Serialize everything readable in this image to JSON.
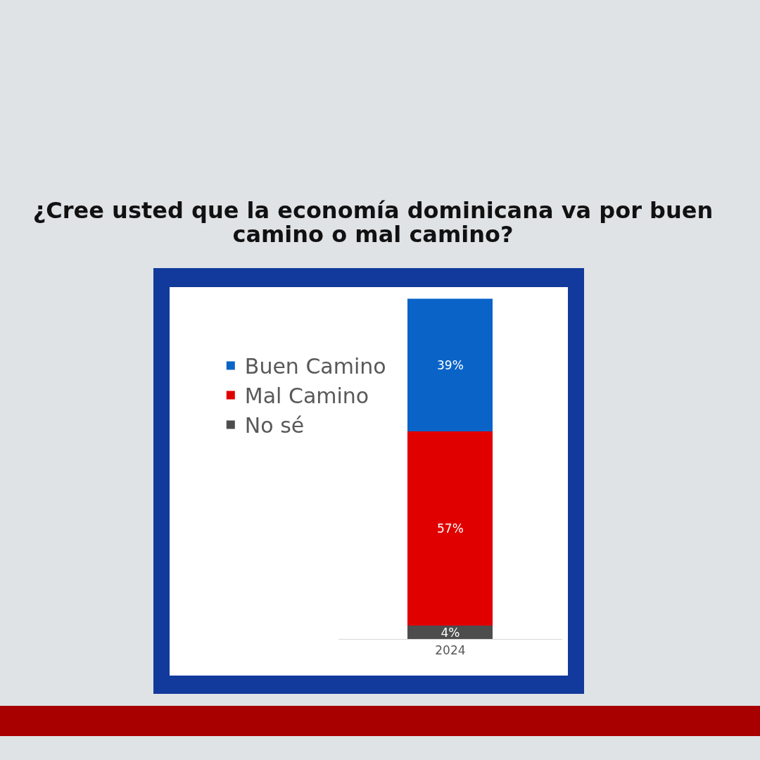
{
  "chart_data": {
    "type": "bar",
    "title": "¿Cree usted que la economía dominicana va por buen camino o mal camino?",
    "categories": [
      "2024"
    ],
    "stacked": true,
    "legend": "left",
    "grid": false,
    "series": [
      {
        "name": "No sé",
        "color": "#4d4d4d",
        "values": [
          4
        ],
        "value_labels": [
          "4%"
        ]
      },
      {
        "name": "Mal Camino",
        "color": "#e00000",
        "values": [
          57
        ],
        "value_labels": [
          "57%"
        ]
      },
      {
        "name": "Buen Camino",
        "color": "#0a64c8",
        "values": [
          39
        ],
        "value_labels": [
          "39%"
        ]
      }
    ]
  }
}
